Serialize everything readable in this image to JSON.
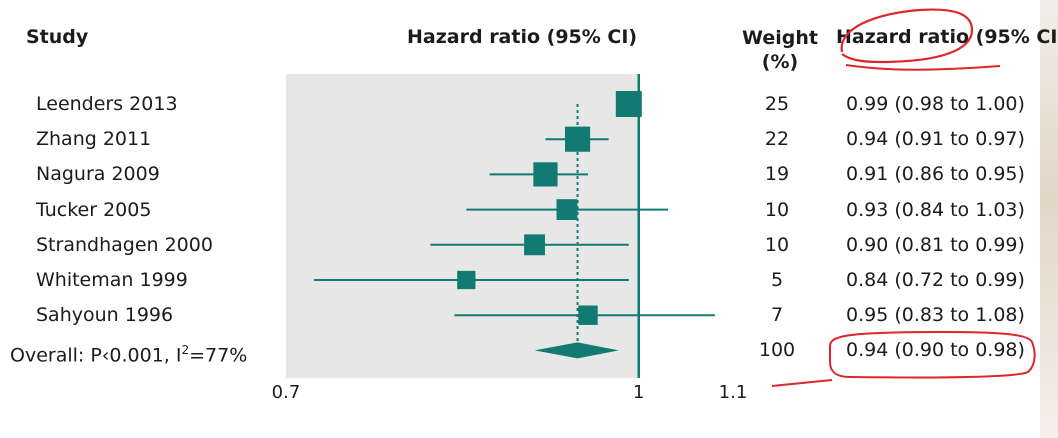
{
  "headers": {
    "study": "Study",
    "hazard_ratio": "Hazard ratio (95% CI)",
    "weight": "Weight",
    "weight_unit": "(%)",
    "hazard_ratio_ci": "Hazard ratio (95% CI)"
  },
  "overall_label_prefix": "Overall: P‹0.001, I",
  "overall_label_sup": "2",
  "overall_label_suffix": "=77%",
  "colors": {
    "marker": "#117a72",
    "plot_bg": "#e7e7e7",
    "annotation": "#e0252b"
  },
  "chart_data": {
    "type": "forest",
    "x_scale": "log",
    "xlim": [
      0.7,
      1.1
    ],
    "x_ticks": [
      "0.7",
      "1",
      "1.1"
    ],
    "reference_line": 1,
    "pooled_line": 0.94,
    "studies": [
      {
        "name": "Leenders 2013",
        "hr": 0.99,
        "lower": 0.98,
        "upper": 1.0,
        "weight": 25,
        "ci_text": "0.99 (0.98 to 1.00)"
      },
      {
        "name": "Zhang 2011",
        "hr": 0.94,
        "lower": 0.91,
        "upper": 0.97,
        "weight": 22,
        "ci_text": "0.94 (0.91 to 0.97)"
      },
      {
        "name": "Nagura 2009",
        "hr": 0.91,
        "lower": 0.86,
        "upper": 0.95,
        "weight": 19,
        "ci_text": "0.91 (0.86 to 0.95)"
      },
      {
        "name": "Tucker 2005",
        "hr": 0.93,
        "lower": 0.84,
        "upper": 1.03,
        "weight": 10,
        "ci_text": "0.93 (0.84 to 1.03)"
      },
      {
        "name": "Strandhagen 2000",
        "hr": 0.9,
        "lower": 0.81,
        "upper": 0.99,
        "weight": 10,
        "ci_text": "0.90 (0.81 to 0.99)"
      },
      {
        "name": "Whiteman 1999",
        "hr": 0.84,
        "lower": 0.72,
        "upper": 0.99,
        "weight": 5,
        "ci_text": "0.84 (0.72 to 0.99)"
      },
      {
        "name": "Sahyoun 1996",
        "hr": 0.95,
        "lower": 0.83,
        "upper": 1.08,
        "weight": 7,
        "ci_text": "0.95 (0.83 to 1.08)"
      }
    ],
    "overall": {
      "hr": 0.94,
      "lower": 0.9,
      "upper": 0.98,
      "weight": 100,
      "ci_text": "0.94 (0.90 to 0.98)"
    }
  }
}
